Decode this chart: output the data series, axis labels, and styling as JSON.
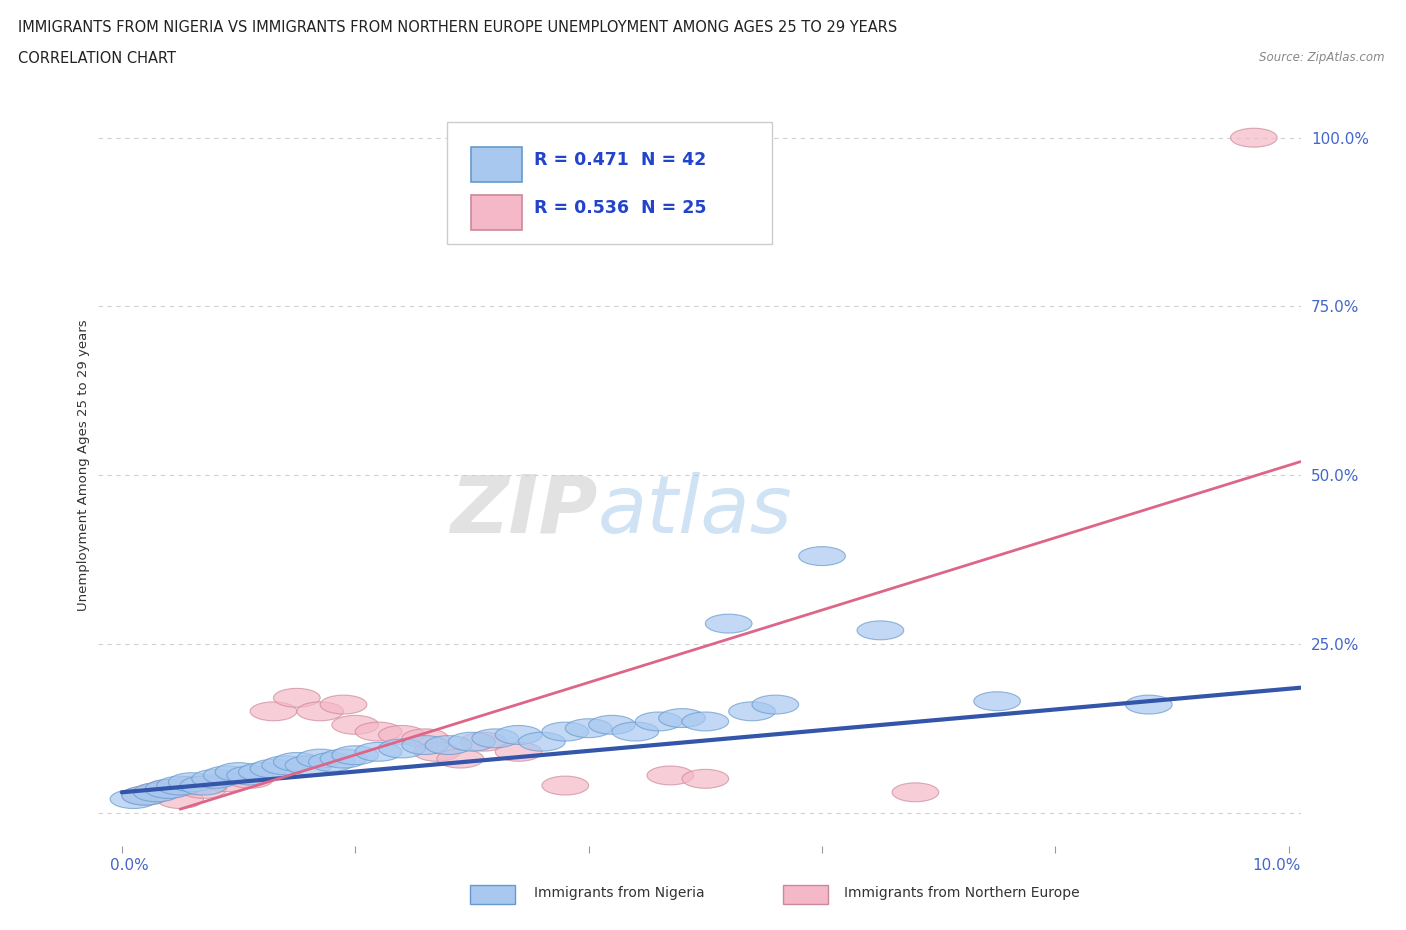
{
  "title_line1": "IMMIGRANTS FROM NIGERIA VS IMMIGRANTS FROM NORTHERN EUROPE UNEMPLOYMENT AMONG AGES 25 TO 29 YEARS",
  "title_line2": "CORRELATION CHART",
  "source_text": "Source: ZipAtlas.com",
  "watermark_part1": "ZIP",
  "watermark_part2": "atlas",
  "ylabel": "Unemployment Among Ages 25 to 29 years",
  "legend1_label": "Immigrants from Nigeria",
  "legend2_label": "Immigrants from Northern Europe",
  "color_nigeria": "#a8c8f0",
  "color_nigeria_edge": "#6699cc",
  "color_nigeria_line": "#3355aa",
  "color_northern": "#f5b8c8",
  "color_northern_edge": "#cc8899",
  "color_northern_line": "#dd6688",
  "color_legend_text": "#2244cc",
  "color_yticklabel": "#4466cc",
  "xlim": [
    -0.002,
    0.101
  ],
  "ylim": [
    -0.05,
    1.08
  ],
  "yticks": [
    0.0,
    0.25,
    0.5,
    0.75,
    1.0
  ],
  "ytick_labels": [
    "",
    "25.0%",
    "50.0%",
    "75.0%",
    "100.0%"
  ],
  "nigeria_points": [
    [
      0.001,
      0.02
    ],
    [
      0.002,
      0.025
    ],
    [
      0.003,
      0.03
    ],
    [
      0.004,
      0.035
    ],
    [
      0.005,
      0.04
    ],
    [
      0.006,
      0.045
    ],
    [
      0.007,
      0.04
    ],
    [
      0.008,
      0.05
    ],
    [
      0.009,
      0.055
    ],
    [
      0.01,
      0.06
    ],
    [
      0.011,
      0.055
    ],
    [
      0.012,
      0.06
    ],
    [
      0.013,
      0.065
    ],
    [
      0.014,
      0.07
    ],
    [
      0.015,
      0.075
    ],
    [
      0.016,
      0.07
    ],
    [
      0.017,
      0.08
    ],
    [
      0.018,
      0.075
    ],
    [
      0.019,
      0.08
    ],
    [
      0.02,
      0.085
    ],
    [
      0.022,
      0.09
    ],
    [
      0.024,
      0.095
    ],
    [
      0.026,
      0.1
    ],
    [
      0.028,
      0.1
    ],
    [
      0.03,
      0.105
    ],
    [
      0.032,
      0.11
    ],
    [
      0.034,
      0.115
    ],
    [
      0.036,
      0.105
    ],
    [
      0.038,
      0.12
    ],
    [
      0.04,
      0.125
    ],
    [
      0.042,
      0.13
    ],
    [
      0.044,
      0.12
    ],
    [
      0.046,
      0.135
    ],
    [
      0.048,
      0.14
    ],
    [
      0.05,
      0.135
    ],
    [
      0.052,
      0.28
    ],
    [
      0.054,
      0.15
    ],
    [
      0.056,
      0.16
    ],
    [
      0.06,
      0.38
    ],
    [
      0.065,
      0.27
    ],
    [
      0.075,
      0.165
    ],
    [
      0.088,
      0.16
    ]
  ],
  "northern_points": [
    [
      0.002,
      0.025
    ],
    [
      0.003,
      0.03
    ],
    [
      0.004,
      0.035
    ],
    [
      0.005,
      0.02
    ],
    [
      0.006,
      0.04
    ],
    [
      0.007,
      0.035
    ],
    [
      0.009,
      0.045
    ],
    [
      0.011,
      0.05
    ],
    [
      0.013,
      0.15
    ],
    [
      0.015,
      0.17
    ],
    [
      0.017,
      0.15
    ],
    [
      0.019,
      0.16
    ],
    [
      0.02,
      0.13
    ],
    [
      0.022,
      0.12
    ],
    [
      0.024,
      0.115
    ],
    [
      0.026,
      0.11
    ],
    [
      0.027,
      0.09
    ],
    [
      0.029,
      0.08
    ],
    [
      0.031,
      0.105
    ],
    [
      0.034,
      0.09
    ],
    [
      0.038,
      0.04
    ],
    [
      0.047,
      0.055
    ],
    [
      0.05,
      0.05
    ],
    [
      0.068,
      0.03
    ],
    [
      0.097,
      1.0
    ]
  ],
  "nigeria_line_x": [
    0.0,
    0.101
  ],
  "nigeria_line_y": [
    0.03,
    0.185
  ],
  "northern_line_x": [
    0.005,
    0.101
  ],
  "northern_line_y": [
    0.005,
    0.52
  ]
}
